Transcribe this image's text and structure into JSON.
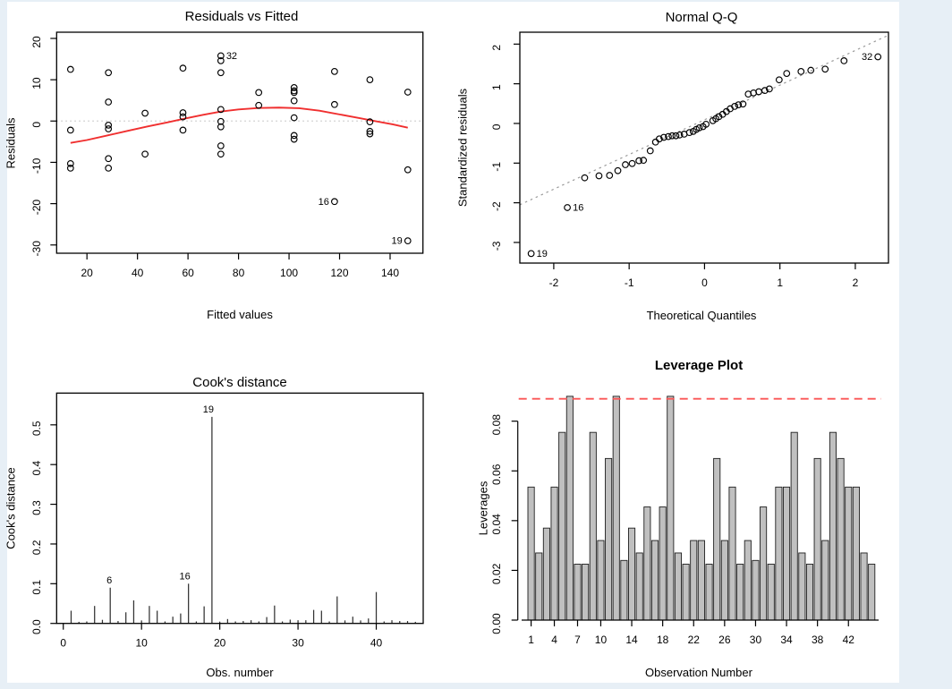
{
  "colors": {
    "background": "#e7eff6",
    "panel_background": "#ffffff",
    "point_stroke": "#000000",
    "frame": "#000000",
    "smooth_line": "#f02f2f",
    "zero_line": "#c6c6c6",
    "qq_ref_line": "#9a9a9a",
    "spike": "#333333",
    "bar_fill": "#c0c0c0",
    "bar_stroke": "#1f1f1f",
    "threshold_line": "#fa5656"
  },
  "chart_data": [
    {
      "id": "residuals_vs_fitted",
      "type": "scatter",
      "title": "Residuals vs Fitted",
      "xlabel": "Fitted values",
      "ylabel": "Residuals",
      "xlim": [
        8,
        153
      ],
      "ylim": [
        -32,
        21.5
      ],
      "grid": false,
      "xtick_values": [
        20,
        40,
        60,
        80,
        100,
        120,
        140
      ],
      "xtick_labels": [
        "20",
        "40",
        "60",
        "80",
        "100",
        "120",
        "140"
      ],
      "ytick_values": [
        -30,
        -20,
        -10,
        0,
        10,
        20
      ],
      "ytick_labels": [
        "-30",
        "-20",
        "-10",
        "0",
        "10",
        "20"
      ],
      "zero_line_y": 0,
      "smooth_line": [
        [
          13.5,
          -5.3
        ],
        [
          20,
          -4.6
        ],
        [
          28,
          -3.5
        ],
        [
          36,
          -2.4
        ],
        [
          44,
          -1.3
        ],
        [
          52,
          -0.3
        ],
        [
          58,
          0.5
        ],
        [
          66,
          1.5
        ],
        [
          73,
          2.3
        ],
        [
          80,
          2.8
        ],
        [
          88,
          3.15
        ],
        [
          96,
          3.25
        ],
        [
          104,
          3.1
        ],
        [
          112,
          2.5
        ],
        [
          120,
          1.6
        ],
        [
          128,
          0.7
        ],
        [
          134,
          0.0
        ],
        [
          141,
          -0.8
        ],
        [
          147,
          -1.6
        ]
      ],
      "points": [
        [
          13.5,
          12.5
        ],
        [
          13.5,
          -2.2
        ],
        [
          13.5,
          -10.3
        ],
        [
          13.5,
          -11.4
        ],
        [
          28.5,
          11.7
        ],
        [
          28.5,
          4.6
        ],
        [
          28.5,
          -1.0
        ],
        [
          28.5,
          -1.9
        ],
        [
          28.5,
          -9.1
        ],
        [
          28.5,
          -11.4
        ],
        [
          43,
          1.9
        ],
        [
          43,
          -8.0
        ],
        [
          58,
          12.8
        ],
        [
          58,
          2.0
        ],
        [
          58,
          1.0
        ],
        [
          58,
          -2.2
        ],
        [
          73,
          14.6
        ],
        [
          73,
          11.7
        ],
        [
          73,
          2.8
        ],
        [
          73,
          -0.1
        ],
        [
          73,
          -1.4
        ],
        [
          73,
          -6.0
        ],
        [
          73,
          -8.0
        ],
        [
          88,
          6.9
        ],
        [
          88,
          3.8
        ],
        [
          102,
          8.1
        ],
        [
          102,
          7.3
        ],
        [
          102,
          6.9
        ],
        [
          102,
          4.9
        ],
        [
          102,
          0.8
        ],
        [
          102,
          -3.5
        ],
        [
          102,
          -4.4
        ],
        [
          118,
          12.0
        ],
        [
          118,
          4.0
        ],
        [
          132,
          10.0
        ],
        [
          132,
          -0.2
        ],
        [
          132,
          -2.5
        ],
        [
          132,
          -3.1
        ],
        [
          147,
          7.0
        ],
        [
          147,
          -11.8
        ]
      ],
      "labeled_points": [
        {
          "label": "32",
          "x": 73,
          "y": 15.8,
          "side": "right"
        },
        {
          "label": "16",
          "x": 118,
          "y": -19.5,
          "side": "left"
        },
        {
          "label": "19",
          "x": 147,
          "y": -29.0,
          "side": "left"
        }
      ]
    },
    {
      "id": "normal_qq",
      "type": "scatter",
      "title": "Normal Q-Q",
      "xlabel": "Theoretical Quantiles",
      "ylabel": "Standardized residuals",
      "xlim": [
        -2.45,
        2.44
      ],
      "ylim": [
        -3.52,
        2.3
      ],
      "grid": false,
      "xtick_values": [
        -2,
        -1,
        0,
        1,
        2
      ],
      "xtick_labels": [
        "-2",
        "-1",
        "0",
        "1",
        "2"
      ],
      "ytick_values": [
        -3,
        -2,
        -1,
        0,
        1,
        2
      ],
      "ytick_labels": [
        "-3",
        "-2",
        "-1",
        "0",
        "1",
        "2"
      ],
      "ref_line": {
        "x1": -2.45,
        "y1": -2.05,
        "x2": 2.44,
        "y2": 2.225
      },
      "points": [
        [
          -1.59,
          -1.37
        ],
        [
          -1.4,
          -1.32
        ],
        [
          -1.26,
          -1.31
        ],
        [
          -1.15,
          -1.19
        ],
        [
          -1.05,
          -1.04
        ],
        [
          -0.96,
          -1.01
        ],
        [
          -0.87,
          -0.94
        ],
        [
          -0.81,
          -0.93
        ],
        [
          -0.72,
          -0.69
        ],
        [
          -0.65,
          -0.47
        ],
        [
          -0.6,
          -0.39
        ],
        [
          -0.54,
          -0.35
        ],
        [
          -0.48,
          -0.33
        ],
        [
          -0.43,
          -0.31
        ],
        [
          -0.38,
          -0.31
        ],
        [
          -0.33,
          -0.29
        ],
        [
          -0.27,
          -0.27
        ],
        [
          -0.2,
          -0.23
        ],
        [
          -0.15,
          -0.2
        ],
        [
          -0.11,
          -0.15
        ],
        [
          -0.07,
          -0.11
        ],
        [
          -0.02,
          -0.08
        ],
        [
          0.02,
          -0.02
        ],
        [
          0.11,
          0.07
        ],
        [
          0.15,
          0.12
        ],
        [
          0.19,
          0.17
        ],
        [
          0.24,
          0.23
        ],
        [
          0.29,
          0.3
        ],
        [
          0.34,
          0.37
        ],
        [
          0.4,
          0.43
        ],
        [
          0.45,
          0.47
        ],
        [
          0.51,
          0.49
        ],
        [
          0.58,
          0.74
        ],
        [
          0.65,
          0.77
        ],
        [
          0.72,
          0.8
        ],
        [
          0.8,
          0.83
        ],
        [
          0.86,
          0.87
        ],
        [
          0.99,
          1.1
        ],
        [
          1.09,
          1.26
        ],
        [
          1.28,
          1.31
        ],
        [
          1.41,
          1.34
        ],
        [
          1.6,
          1.37
        ],
        [
          1.85,
          1.58
        ]
      ],
      "labeled_points": [
        {
          "label": "19",
          "x": -2.3,
          "y": -3.28,
          "side": "right"
        },
        {
          "label": "16",
          "x": -1.82,
          "y": -2.12,
          "side": "right"
        },
        {
          "label": "32",
          "x": 2.3,
          "y": 1.68,
          "side": "left"
        }
      ]
    },
    {
      "id": "cooks_distance",
      "type": "spike",
      "title": "Cook's distance",
      "xlabel": "Obs. number",
      "ylabel": "Cook's distance",
      "xlim": [
        -0.85,
        46
      ],
      "ylim": [
        0,
        0.58
      ],
      "grid": false,
      "xtick_values": [
        0,
        10,
        20,
        30,
        40
      ],
      "xtick_labels": [
        "0",
        "10",
        "20",
        "30",
        "40"
      ],
      "ytick_values": [
        0.0,
        0.1,
        0.2,
        0.3,
        0.4,
        0.5
      ],
      "ytick_labels": [
        "0.0",
        "0.1",
        "0.2",
        "0.3",
        "0.4",
        "0.5"
      ],
      "values": [
        0.032,
        0.004,
        0.005,
        0.044,
        0.009,
        0.09,
        0.006,
        0.028,
        0.058,
        0.0075,
        0.044,
        0.032,
        0.005,
        0.017,
        0.025,
        0.1,
        0.005,
        0.043,
        0.52,
        0.0045,
        0.011,
        0.005,
        0.006,
        0.008,
        0.005,
        0.016,
        0.045,
        0.005,
        0.0095,
        0.008,
        0.008,
        0.034,
        0.032,
        0.005,
        0.068,
        0.0075,
        0.017,
        0.0075,
        0.0125,
        0.079,
        0.005,
        0.008,
        0.006,
        0.006,
        0.004
      ],
      "labeled_points": [
        {
          "label": "6",
          "obs": 6,
          "dx": -1
        },
        {
          "label": "16",
          "obs": 16,
          "dx": -4
        },
        {
          "label": "19",
          "obs": 19,
          "dx": -4
        }
      ]
    },
    {
      "id": "leverage_plot",
      "type": "bar",
      "title": "Leverage Plot",
      "xlabel": "Observation Number",
      "ylabel": "Leverages",
      "ylim": [
        0,
        0.096
      ],
      "grid": false,
      "xtick_bars": [
        1,
        4,
        7,
        10,
        14,
        18,
        22,
        26,
        30,
        34,
        38,
        42
      ],
      "xtick_labels": [
        "1",
        "4",
        "7",
        "10",
        "14",
        "18",
        "22",
        "26",
        "30",
        "34",
        "38",
        "42"
      ],
      "ytick_values": [
        0.0,
        0.02,
        0.04,
        0.06,
        0.08
      ],
      "ytick_labels": [
        "0.00",
        "0.02",
        "0.04",
        "0.06",
        "0.08"
      ],
      "threshold": 0.089,
      "values": [
        0.0535,
        0.027,
        0.037,
        0.0535,
        0.0755,
        0.09,
        0.0225,
        0.0225,
        0.0755,
        0.032,
        0.065,
        0.09,
        0.024,
        0.037,
        0.027,
        0.0455,
        0.032,
        0.0455,
        0.09,
        0.027,
        0.0225,
        0.032,
        0.032,
        0.0225,
        0.065,
        0.032,
        0.0535,
        0.0225,
        0.032,
        0.024,
        0.0455,
        0.0225,
        0.0535,
        0.0535,
        0.0755,
        0.027,
        0.0225,
        0.065,
        0.032,
        0.0755,
        0.065,
        0.0535,
        0.0535,
        0.027,
        0.0225
      ]
    }
  ]
}
